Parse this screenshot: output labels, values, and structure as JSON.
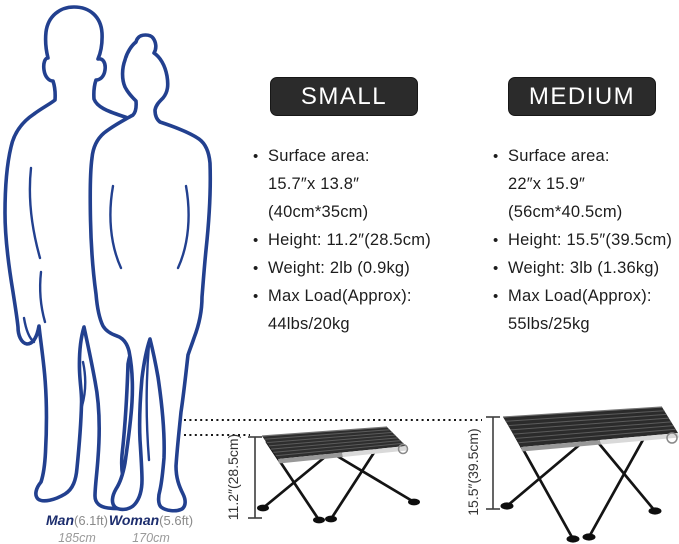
{
  "colors": {
    "figure_outline": "#22408f",
    "badge_background": "#2b2b2b",
    "badge_text": "#ffffff",
    "body_text": "#1d1d1d",
    "muted_text": "#8a8a8a"
  },
  "scale_figures": {
    "man": {
      "name": "Man",
      "height_ft": "(6.1ft)",
      "height_cm": "185cm"
    },
    "woman": {
      "name": "Woman",
      "height_ft": "(5.6ft)",
      "height_cm": "170cm"
    }
  },
  "columns": [
    {
      "id": "small",
      "badge": "SMALL",
      "specs": [
        {
          "lines": [
            "Surface area:",
            "15.7″x 13.8″",
            "(40cm*35cm)"
          ]
        },
        {
          "lines": [
            "Height: 11.2″(28.5cm)"
          ]
        },
        {
          "lines": [
            "Weight: 2lb (0.9kg)"
          ]
        },
        {
          "lines": [
            "Max Load(Approx):",
            "44lbs/20kg"
          ]
        }
      ],
      "table_height_label": "11.2″(28.5cm)"
    },
    {
      "id": "medium",
      "badge": "MEDIUM",
      "specs": [
        {
          "lines": [
            "Surface area:",
            "22″x 15.9″",
            "(56cm*40.5cm)"
          ]
        },
        {
          "lines": [
            "Height: 15.5″(39.5cm)"
          ]
        },
        {
          "lines": [
            "Weight: 3lb (1.36kg)"
          ]
        },
        {
          "lines": [
            "Max Load(Approx):",
            "55lbs/25kg"
          ]
        }
      ],
      "table_height_label": "15.5″(39.5cm)"
    }
  ]
}
